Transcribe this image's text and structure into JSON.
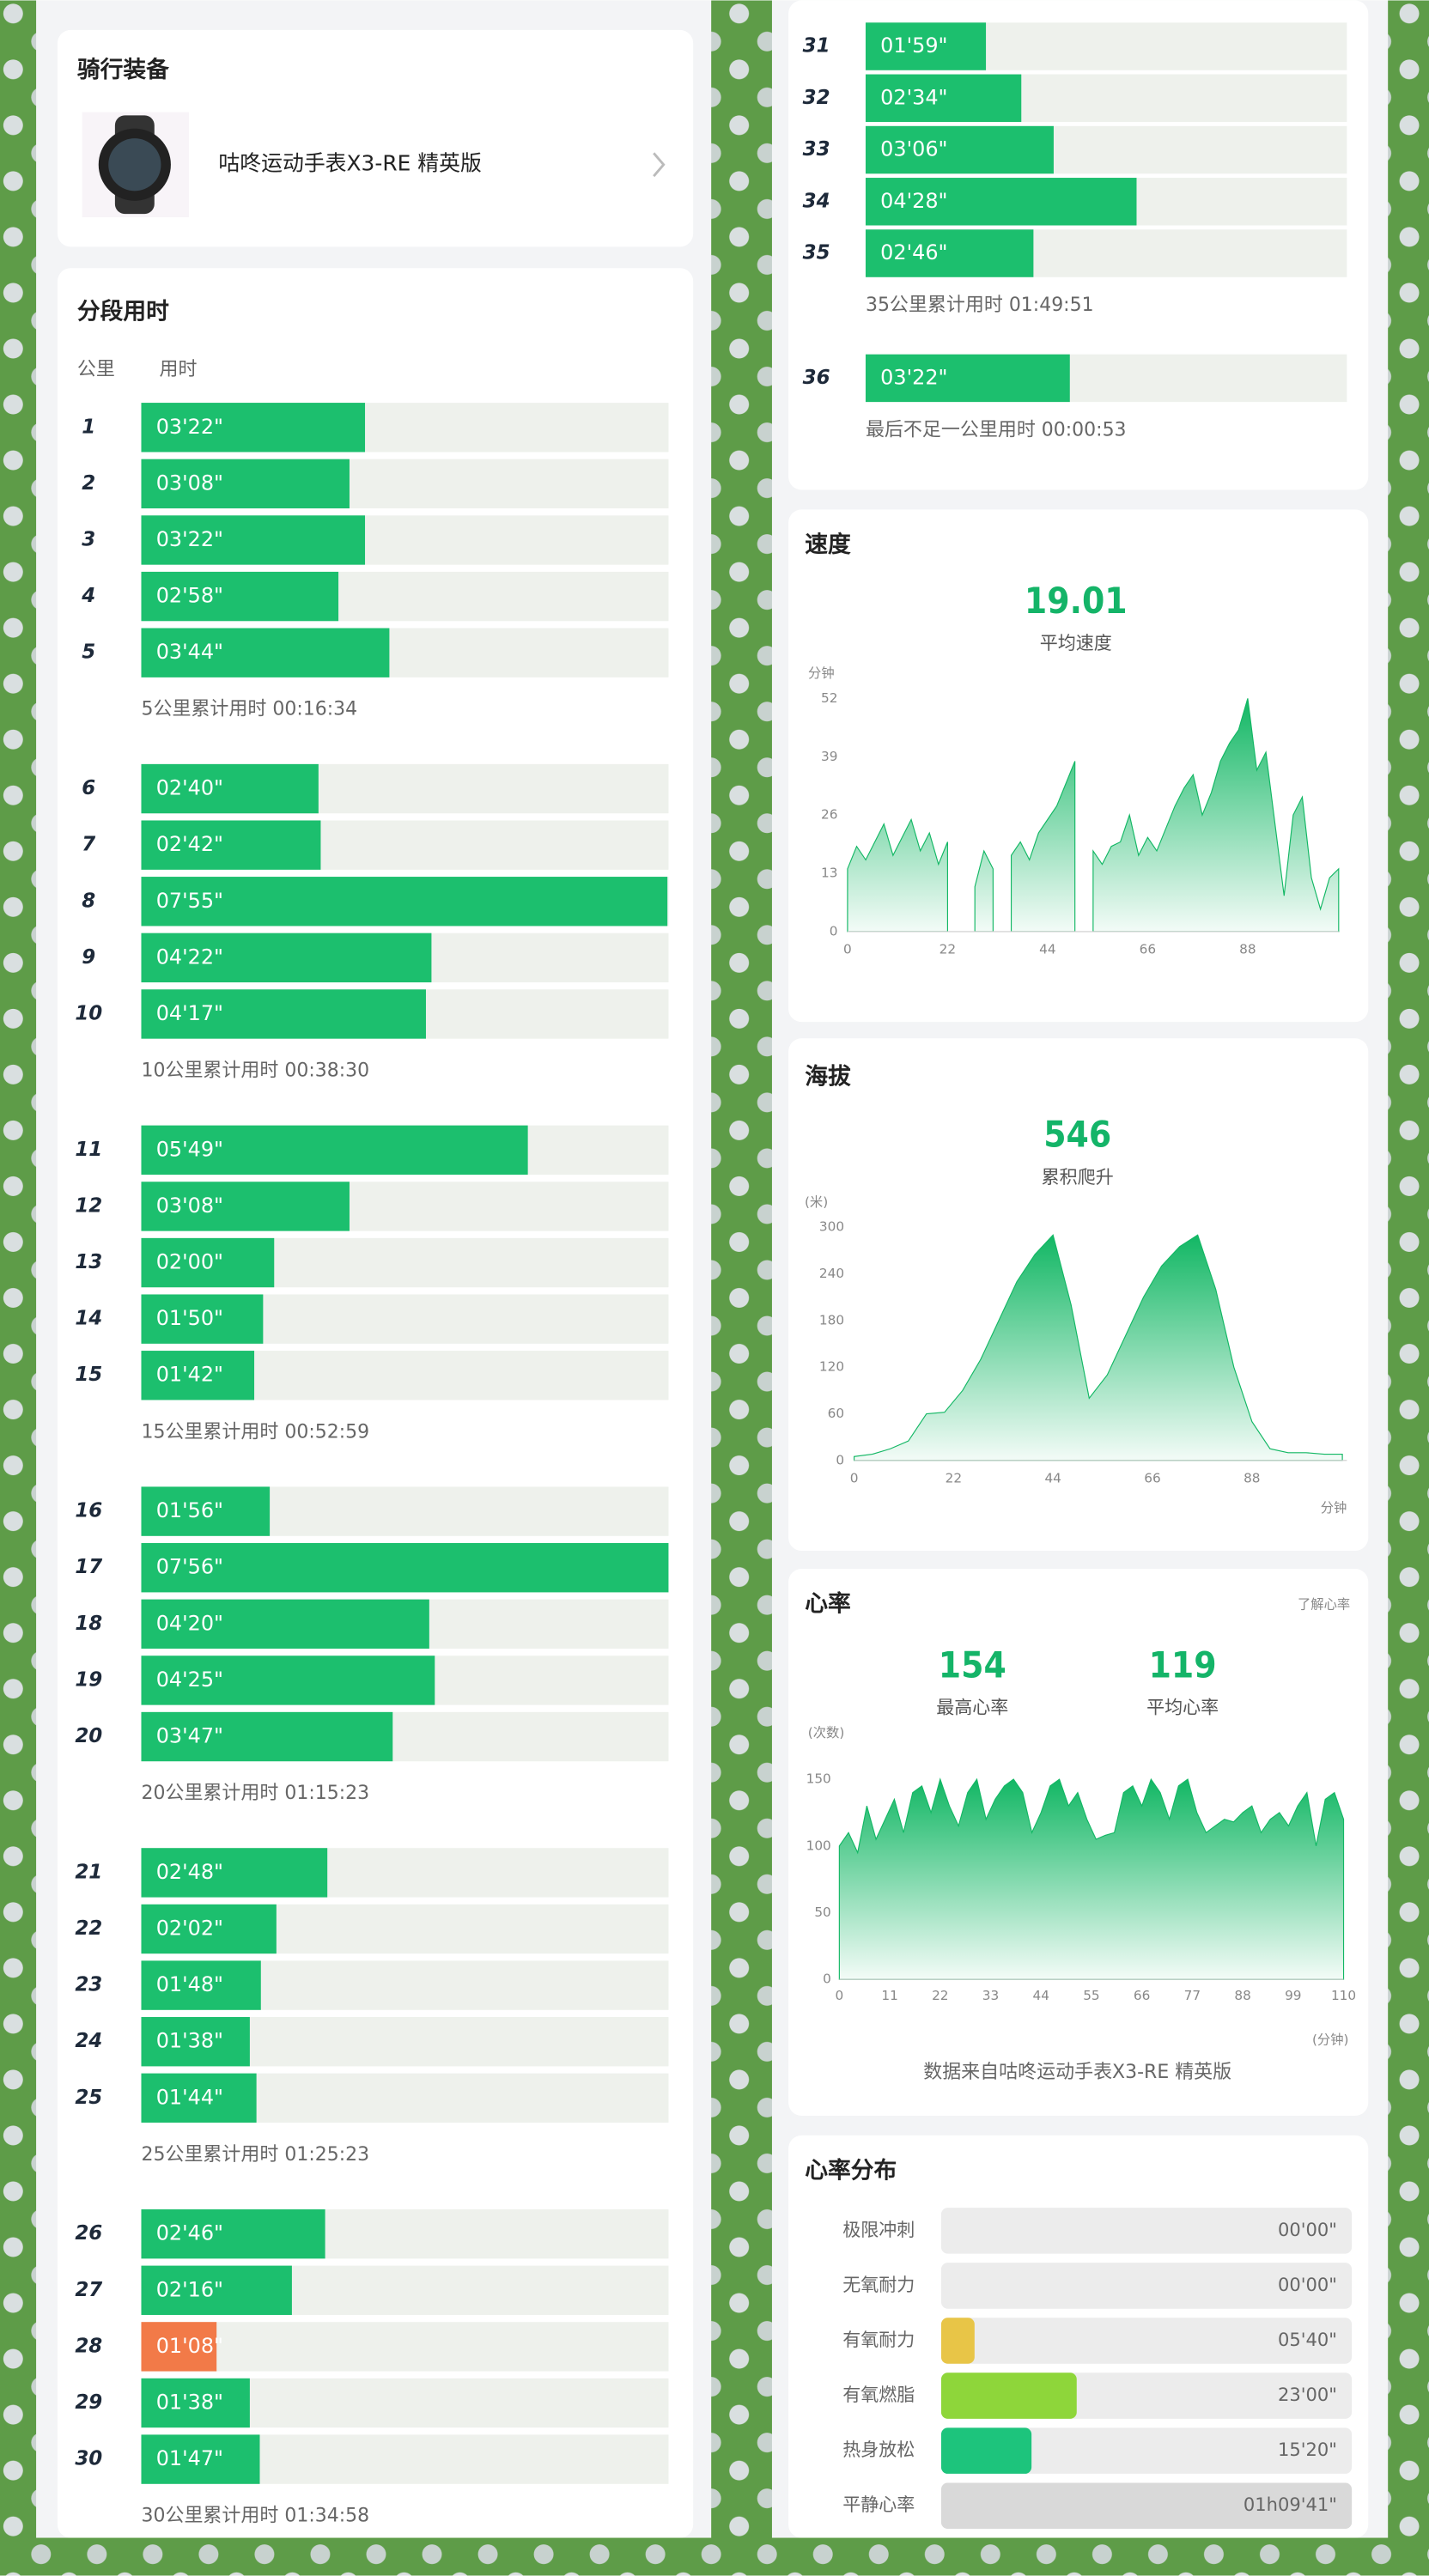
{
  "gear": {
    "title": "骑行装备",
    "device": "咕咚运动手表X3-RE 精英版"
  },
  "splits": {
    "type": "bar",
    "title": "分段用时",
    "col_km": "公里",
    "col_time": "用时",
    "categories": [
      "1",
      "2",
      "3",
      "4",
      "5",
      "6",
      "7",
      "8",
      "9",
      "10",
      "11",
      "12",
      "13",
      "14",
      "15",
      "16",
      "17",
      "18",
      "19",
      "20",
      "21",
      "22",
      "23",
      "24",
      "25",
      "26",
      "27",
      "28",
      "29",
      "30",
      "31",
      "32",
      "33",
      "34",
      "35",
      "36"
    ],
    "values": [
      202,
      188,
      202,
      178,
      224,
      160,
      162,
      475,
      262,
      257,
      349,
      188,
      120,
      110,
      102,
      116,
      476,
      260,
      265,
      227,
      168,
      122,
      108,
      98,
      104,
      166,
      136,
      68,
      98,
      107,
      119,
      154,
      186,
      268,
      166,
      202
    ],
    "value_labels": [
      "03'22\"",
      "03'08\"",
      "03'22\"",
      "02'58\"",
      "03'44\"",
      "02'40\"",
      "02'42\"",
      "07'55\"",
      "04'22\"",
      "04'17\"",
      "05'49\"",
      "03'08\"",
      "02'00\"",
      "01'50\"",
      "01'42\"",
      "01'56\"",
      "07'56\"",
      "04'20\"",
      "04'25\"",
      "03'47\"",
      "02'48\"",
      "02'02\"",
      "01'48\"",
      "01'38\"",
      "01'44\"",
      "02'46\"",
      "02'16\"",
      "01'08\"",
      "01'38\"",
      "01'47\"",
      "01'59\"",
      "02'34\"",
      "03'06\"",
      "04'28\"",
      "02'46\"",
      "03'22\""
    ],
    "xlim": [
      0,
      476
    ],
    "color": "#1cbf6e",
    "fastest_color": "#f27a48",
    "track_color": "#eef1ec",
    "summaries": [
      "5公里累计用时 00:16:34",
      "10公里累计用时 00:38:30",
      "15公里累计用时 00:52:59",
      "20公里累计用时 01:15:23",
      "25公里累计用时 01:25:23",
      "30公里累计用时 01:34:58",
      "35公里累计用时 01:49:51",
      "最后不足一公里用时 00:00:53"
    ]
  },
  "speed": {
    "type": "area",
    "title": "速度",
    "stats": [
      {
        "value": 19.01,
        "label": "平均速度"
      }
    ],
    "ylabel": "分钟",
    "x": [
      0,
      2,
      4,
      6,
      8,
      10,
      12,
      14,
      16,
      18,
      20,
      22,
      24,
      26,
      28,
      30,
      32,
      34,
      36,
      38,
      40,
      42,
      44,
      46,
      48,
      50,
      52,
      54,
      56,
      58,
      60,
      62,
      64,
      66,
      68,
      70,
      72,
      74,
      76,
      78,
      80,
      82,
      84,
      86,
      88,
      90,
      92,
      94,
      96,
      98,
      100,
      102,
      104,
      106,
      108
    ],
    "values": [
      14,
      19,
      16,
      20,
      24,
      17,
      21,
      25,
      18,
      22,
      15,
      20,
      null,
      null,
      10,
      18,
      14,
      null,
      17,
      20,
      16,
      22,
      25,
      28,
      33,
      38,
      null,
      18,
      15,
      19,
      20,
      26,
      17,
      21,
      18,
      23,
      28,
      32,
      35,
      26,
      31,
      38,
      42,
      45,
      52,
      36,
      40,
      24,
      8,
      26,
      30,
      12,
      5,
      12,
      14
    ],
    "xlim": [
      0,
      108
    ],
    "ylim": [
      0,
      52
    ],
    "xticks": [
      0,
      22,
      44,
      66,
      88
    ],
    "yticks": [
      0,
      13,
      26,
      39,
      52
    ],
    "color": "#12b764",
    "grid": false
  },
  "altitude": {
    "type": "area",
    "title": "海拔",
    "stats": [
      {
        "value": 546,
        "label": "累积爬升"
      }
    ],
    "ylabel": "(米)",
    "xlabel": "分钟",
    "x": [
      0,
      4,
      8,
      12,
      16,
      20,
      24,
      28,
      32,
      36,
      40,
      44,
      48,
      52,
      56,
      60,
      64,
      68,
      72,
      76,
      80,
      84,
      88,
      92,
      96,
      100,
      104,
      108
    ],
    "values": [
      5,
      8,
      15,
      25,
      60,
      62,
      90,
      130,
      180,
      230,
      265,
      290,
      200,
      80,
      110,
      160,
      210,
      250,
      275,
      290,
      220,
      120,
      50,
      15,
      10,
      10,
      8,
      8
    ],
    "xlim": [
      0,
      109
    ],
    "ylim": [
      0,
      300
    ],
    "xticks": [
      0,
      22,
      44,
      66,
      88
    ],
    "yticks": [
      0,
      60,
      120,
      180,
      240,
      300
    ],
    "color": "#12b764",
    "grid": false
  },
  "heart_rate": {
    "type": "area",
    "title": "心率",
    "link": "了解心率",
    "stats": [
      {
        "value": 154,
        "label": "最高心率"
      },
      {
        "value": 119,
        "label": "平均心率"
      }
    ],
    "ylabel": "(次数)",
    "xlabel": "(分钟)",
    "note": "数据来自咕咚运动手表X3-RE 精英版",
    "x": [
      0,
      2,
      4,
      6,
      8,
      10,
      12,
      14,
      16,
      18,
      20,
      22,
      24,
      26,
      28,
      30,
      32,
      34,
      36,
      38,
      40,
      42,
      44,
      46,
      48,
      50,
      52,
      54,
      56,
      58,
      60,
      62,
      64,
      66,
      68,
      70,
      72,
      74,
      76,
      78,
      80,
      82,
      84,
      86,
      88,
      90,
      92,
      94,
      96,
      98,
      100,
      102,
      104,
      106,
      108,
      110
    ],
    "values": [
      100,
      110,
      95,
      130,
      105,
      120,
      135,
      110,
      140,
      145,
      125,
      150,
      130,
      115,
      140,
      150,
      120,
      135,
      145,
      150,
      140,
      110,
      125,
      145,
      150,
      130,
      140,
      120,
      105,
      108,
      110,
      140,
      145,
      130,
      150,
      140,
      120,
      145,
      150,
      125,
      110,
      115,
      120,
      118,
      125,
      130,
      110,
      120,
      125,
      115,
      130,
      140,
      100,
      135,
      140,
      120
    ],
    "xlim": [
      0,
      110
    ],
    "ylim": [
      0,
      160
    ],
    "xticks": [
      0,
      11,
      22,
      33,
      44,
      55,
      66,
      77,
      88,
      99,
      110
    ],
    "yticks": [
      0,
      50,
      100,
      150
    ],
    "color": "#12b764",
    "grid": false
  },
  "hr_zones": {
    "type": "bar",
    "title": "心率分布",
    "categories": [
      "极限冲刺",
      "无氧耐力",
      "有氧耐力",
      "有氧燃脂",
      "热身放松",
      "平静心率"
    ],
    "values": [
      0,
      0,
      340,
      1380,
      920,
      4181
    ],
    "value_labels": [
      "00'00\"",
      "00'00\"",
      "05'40\"",
      "23'00\"",
      "15'20\"",
      "01h09'41\""
    ],
    "colors": [
      "#e5534b",
      "#f08a3c",
      "#e8c547",
      "#8ed63a",
      "#1dc47c",
      "#d9d9d9"
    ],
    "xlim": [
      0,
      4181
    ],
    "track_color": "#ececec"
  }
}
